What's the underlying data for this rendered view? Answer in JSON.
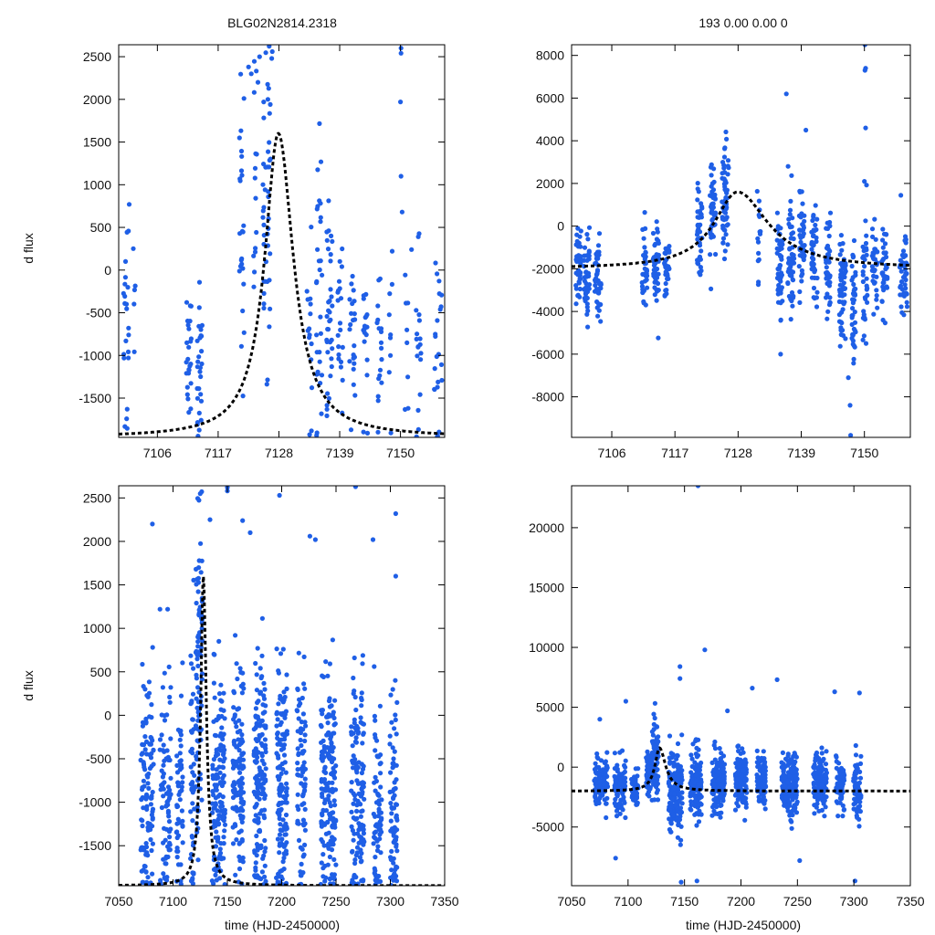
{
  "figure": {
    "title_left": "BLG02N2814.2318",
    "title_right": "193  0.00  0.00  0",
    "ylabel": "d flux",
    "xlabel": "time (HJD-2450000)",
    "point_color": "#1f5fe6",
    "model_color": "#000000"
  },
  "chart_data": [
    {
      "name": "panel-top-left",
      "type": "scatter",
      "title": "BLG02N2814.2318",
      "xlabel": "",
      "ylabel": "d flux",
      "xlim": [
        7099,
        7158
      ],
      "ylim": [
        -1960,
        2640
      ],
      "xticks": [
        7106,
        7117,
        7128,
        7139,
        7150
      ],
      "yticks": [
        -1500,
        -1000,
        -500,
        0,
        500,
        1000,
        1500,
        2000,
        2500
      ],
      "seasons": [
        {
          "center": 7100.3,
          "width": 1.0,
          "n": 22,
          "mean": -700,
          "sd": 620
        },
        {
          "center": 7101.8,
          "width": 0.6,
          "n": 5,
          "mean": -300,
          "sd": 500
        },
        {
          "center": 7111.7,
          "width": 0.9,
          "n": 25,
          "mean": -1100,
          "sd": 550
        },
        {
          "center": 7113.7,
          "width": 1.0,
          "n": 28,
          "mean": -1100,
          "sd": 500
        },
        {
          "center": 7121.3,
          "width": 0.9,
          "n": 25,
          "mean": 700,
          "sd": 850
        },
        {
          "center": 7123.7,
          "width": 0.6,
          "n": 14,
          "mean": 1000,
          "sd": 800
        },
        {
          "center": 7125.8,
          "width": 1.4,
          "n": 45,
          "mean": 900,
          "sd": 1100
        },
        {
          "center": 7133.5,
          "width": 1.0,
          "n": 15,
          "mean": -600,
          "sd": 700
        },
        {
          "center": 7135.3,
          "width": 1.1,
          "n": 30,
          "mean": -200,
          "sd": 700
        },
        {
          "center": 7137.2,
          "width": 1.1,
          "n": 35,
          "mean": -500,
          "sd": 650
        },
        {
          "center": 7139.1,
          "width": 0.9,
          "n": 20,
          "mean": -700,
          "sd": 600
        },
        {
          "center": 7141.3,
          "width": 1.0,
          "n": 22,
          "mean": -700,
          "sd": 600
        },
        {
          "center": 7143.7,
          "width": 0.9,
          "n": 18,
          "mean": -800,
          "sd": 550
        },
        {
          "center": 7146.2,
          "width": 0.9,
          "n": 18,
          "mean": -900,
          "sd": 600
        },
        {
          "center": 7148.2,
          "width": 0.6,
          "n": 9,
          "mean": -1000,
          "sd": 700
        },
        {
          "center": 7151.1,
          "width": 0.6,
          "n": 8,
          "mean": -900,
          "sd": 600
        },
        {
          "center": 7153.3,
          "width": 1.0,
          "n": 18,
          "mean": -900,
          "sd": 600
        },
        {
          "center": 7156.8,
          "width": 1.4,
          "n": 22,
          "mean": -1000,
          "sd": 650
        }
      ],
      "outliers": [
        [
          7150.1,
          2600
        ],
        [
          7150.1,
          2540
        ],
        [
          7150.0,
          1970
        ],
        [
          7150.1,
          1100
        ],
        [
          7100.9,
          770
        ],
        [
          7150.3,
          680
        ],
        [
          7152.0,
          240
        ],
        [
          7122.5,
          2380
        ],
        [
          7123.0,
          2300
        ],
        [
          7124.5,
          2500
        ],
        [
          7126.8,
          2560
        ],
        [
          7126.7,
          2480
        ],
        [
          7124.2,
          2200
        ],
        [
          7126.0,
          2000
        ]
      ],
      "model": {
        "t0": 7127.9,
        "peak": 1600,
        "base": -1960,
        "w_left": 3.0,
        "w_right": 3.3
      }
    },
    {
      "name": "panel-top-right",
      "type": "scatter",
      "title": "193  0.00  0.00  0",
      "xlabel": "",
      "ylabel": "",
      "xlim": [
        7099,
        7158
      ],
      "ylim": [
        -9900,
        8500
      ],
      "xticks": [
        7106,
        7117,
        7128,
        7139,
        7150
      ],
      "yticks": [
        -8000,
        -6000,
        -4000,
        -2000,
        0,
        2000,
        4000,
        6000,
        8000
      ],
      "seasons": [
        {
          "center": 7100.2,
          "width": 0.9,
          "n": 40,
          "mean": -1700,
          "sd": 900
        },
        {
          "center": 7101.6,
          "width": 1.0,
          "n": 40,
          "mean": -2300,
          "sd": 1000
        },
        {
          "center": 7103.6,
          "width": 1.1,
          "n": 45,
          "mean": -2400,
          "sd": 900
        },
        {
          "center": 7111.7,
          "width": 0.9,
          "n": 35,
          "mean": -2200,
          "sd": 900
        },
        {
          "center": 7113.7,
          "width": 1.0,
          "n": 45,
          "mean": -2000,
          "sd": 900
        },
        {
          "center": 7115.6,
          "width": 0.9,
          "n": 35,
          "mean": -1800,
          "sd": 900
        },
        {
          "center": 7121.3,
          "width": 0.9,
          "n": 40,
          "mean": -300,
          "sd": 1300
        },
        {
          "center": 7123.6,
          "width": 1.0,
          "n": 45,
          "mean": 700,
          "sd": 1200
        },
        {
          "center": 7125.8,
          "width": 1.2,
          "n": 60,
          "mean": 1200,
          "sd": 1200
        },
        {
          "center": 7131.6,
          "width": 0.6,
          "n": 15,
          "mean": -1000,
          "sd": 1500
        },
        {
          "center": 7135.3,
          "width": 1.0,
          "n": 50,
          "mean": -2200,
          "sd": 1300
        },
        {
          "center": 7137.2,
          "width": 1.1,
          "n": 50,
          "mean": -1400,
          "sd": 1200
        },
        {
          "center": 7139.1,
          "width": 1.0,
          "n": 45,
          "mean": -800,
          "sd": 1100
        },
        {
          "center": 7141.3,
          "width": 1.0,
          "n": 45,
          "mean": -1300,
          "sd": 1200
        },
        {
          "center": 7143.7,
          "width": 0.9,
          "n": 45,
          "mean": -2000,
          "sd": 1300
        },
        {
          "center": 7146.2,
          "width": 1.1,
          "n": 55,
          "mean": -3200,
          "sd": 1500
        },
        {
          "center": 7148.2,
          "width": 0.8,
          "n": 40,
          "mean": -3600,
          "sd": 1400
        },
        {
          "center": 7150.1,
          "width": 0.8,
          "n": 35,
          "mean": -2500,
          "sd": 1500
        },
        {
          "center": 7151.8,
          "width": 0.9,
          "n": 35,
          "mean": -2200,
          "sd": 1100
        },
        {
          "center": 7153.5,
          "width": 1.0,
          "n": 35,
          "mean": -2000,
          "sd": 1000
        },
        {
          "center": 7156.8,
          "width": 1.3,
          "n": 45,
          "mean": -2400,
          "sd": 1200
        }
      ],
      "outliers": [
        [
          7150.1,
          8500
        ],
        [
          7150.2,
          7400
        ],
        [
          7150.1,
          7300
        ],
        [
          7136.4,
          6200
        ],
        [
          7150.2,
          4600
        ],
        [
          7139.8,
          4500
        ],
        [
          7136.7,
          2800
        ],
        [
          7150.0,
          2100
        ],
        [
          7147.5,
          -8400
        ],
        [
          7147.6,
          -9800
        ],
        [
          7135.4,
          -6000
        ],
        [
          7147.2,
          -7100
        ]
      ],
      "model": {
        "t0": 7127.9,
        "peak": 1600,
        "base": -2000,
        "w_left": 5.0,
        "w_right": 6.5
      }
    },
    {
      "name": "panel-bottom-left",
      "type": "scatter",
      "title": "",
      "xlabel": "time (HJD-2450000)",
      "ylabel": "d flux",
      "xlim": [
        7050,
        7350
      ],
      "ylim": [
        -1960,
        2640
      ],
      "xticks": [
        7050,
        7100,
        7150,
        7200,
        7250,
        7300,
        7350
      ],
      "yticks": [
        -1500,
        -1000,
        -500,
        0,
        500,
        1000,
        1500,
        2000,
        2500
      ],
      "seasons": [
        {
          "center": 7076,
          "width": 12,
          "n": 110,
          "mean": -850,
          "sd": 700
        },
        {
          "center": 7093,
          "width": 10,
          "n": 80,
          "mean": -900,
          "sd": 650
        },
        {
          "center": 7106,
          "width": 6,
          "n": 55,
          "mean": -1000,
          "sd": 600
        },
        {
          "center": 7118,
          "width": 4,
          "n": 45,
          "mean": -700,
          "sd": 800
        },
        {
          "center": 7124,
          "width": 6,
          "n": 95,
          "mean": 600,
          "sd": 1100
        },
        {
          "center": 7142,
          "width": 12,
          "n": 150,
          "mean": -900,
          "sd": 650
        },
        {
          "center": 7160,
          "width": 10,
          "n": 125,
          "mean": -800,
          "sd": 650
        },
        {
          "center": 7180,
          "width": 11,
          "n": 150,
          "mean": -700,
          "sd": 700
        },
        {
          "center": 7200,
          "width": 10,
          "n": 135,
          "mean": -600,
          "sd": 700
        },
        {
          "center": 7218,
          "width": 8,
          "n": 80,
          "mean": -800,
          "sd": 650
        },
        {
          "center": 7243,
          "width": 14,
          "n": 175,
          "mean": -750,
          "sd": 650
        },
        {
          "center": 7270,
          "width": 12,
          "n": 135,
          "mean": -900,
          "sd": 650
        },
        {
          "center": 7288,
          "width": 8,
          "n": 70,
          "mean": -1000,
          "sd": 600
        },
        {
          "center": 7303,
          "width": 7,
          "n": 75,
          "mean": -1000,
          "sd": 650
        }
      ],
      "outliers": [
        [
          7081,
          2200
        ],
        [
          7125,
          2550
        ],
        [
          7150,
          2580
        ],
        [
          7150,
          2620
        ],
        [
          7164,
          2240
        ],
        [
          7171,
          2100
        ],
        [
          7198,
          2530
        ],
        [
          7226,
          2060
        ],
        [
          7231,
          2020
        ],
        [
          7268,
          2630
        ],
        [
          7284,
          2020
        ],
        [
          7305,
          2320
        ],
        [
          7305,
          1600
        ],
        [
          7088,
          1220
        ],
        [
          7095,
          1220
        ],
        [
          7134,
          2250
        ]
      ],
      "model": {
        "t0": 7127.9,
        "peak": 1600,
        "base": -1960,
        "w_left": 3.0,
        "w_right": 3.3
      }
    },
    {
      "name": "panel-bottom-right",
      "type": "scatter",
      "title": "",
      "xlabel": "time (HJD-2450000)",
      "ylabel": "",
      "xlim": [
        7050,
        7350
      ],
      "ylim": [
        -9900,
        23500
      ],
      "xticks": [
        7050,
        7100,
        7150,
        7200,
        7250,
        7300,
        7350
      ],
      "yticks": [
        -5000,
        0,
        5000,
        10000,
        15000,
        20000
      ],
      "seasons": [
        {
          "center": 7076,
          "width": 12,
          "n": 110,
          "mean": -1200,
          "sd": 1000
        },
        {
          "center": 7093,
          "width": 10,
          "n": 85,
          "mean": -1800,
          "sd": 1200
        },
        {
          "center": 7106,
          "width": 6,
          "n": 55,
          "mean": -1800,
          "sd": 900
        },
        {
          "center": 7118,
          "width": 4,
          "n": 45,
          "mean": -800,
          "sd": 1100
        },
        {
          "center": 7124,
          "width": 6,
          "n": 90,
          "mean": 400,
          "sd": 1500
        },
        {
          "center": 7142,
          "width": 12,
          "n": 160,
          "mean": -2200,
          "sd": 1700
        },
        {
          "center": 7160,
          "width": 10,
          "n": 130,
          "mean": -1500,
          "sd": 1400
        },
        {
          "center": 7180,
          "width": 11,
          "n": 150,
          "mean": -1200,
          "sd": 1200
        },
        {
          "center": 7200,
          "width": 10,
          "n": 140,
          "mean": -1000,
          "sd": 1200
        },
        {
          "center": 7218,
          "width": 8,
          "n": 85,
          "mean": -1200,
          "sd": 1100
        },
        {
          "center": 7243,
          "width": 14,
          "n": 180,
          "mean": -1400,
          "sd": 1300
        },
        {
          "center": 7270,
          "width": 12,
          "n": 140,
          "mean": -1200,
          "sd": 1100
        },
        {
          "center": 7288,
          "width": 8,
          "n": 75,
          "mean": -1500,
          "sd": 1000
        },
        {
          "center": 7303,
          "width": 7,
          "n": 75,
          "mean": -1800,
          "sd": 1200
        }
      ],
      "outliers": [
        [
          7162,
          23500
        ],
        [
          7168,
          9800
        ],
        [
          7146,
          8400
        ],
        [
          7146,
          7400
        ],
        [
          7210,
          6600
        ],
        [
          7232,
          7300
        ],
        [
          7305,
          6200
        ],
        [
          7283,
          6300
        ],
        [
          7188,
          4700
        ],
        [
          7098,
          5500
        ],
        [
          7161,
          -9500
        ],
        [
          7147,
          -9600
        ],
        [
          7301,
          -9500
        ],
        [
          7075,
          4000
        ],
        [
          7252,
          -7800
        ],
        [
          7089,
          -7600
        ]
      ],
      "model": {
        "t0": 7127.9,
        "peak": 1600,
        "base": -2000,
        "w_left": 5.0,
        "w_right": 6.5
      }
    }
  ]
}
